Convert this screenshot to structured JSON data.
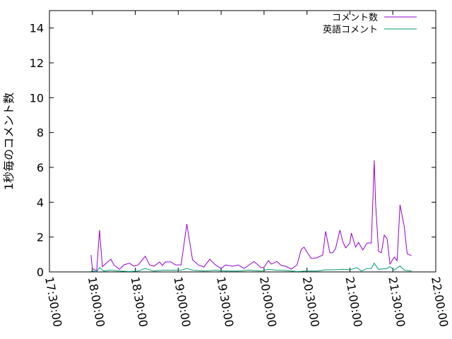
{
  "chart_data": {
    "type": "line",
    "title": "",
    "xlabel": "",
    "ylabel": "1秒毎のコメント数",
    "xlim": [
      "17:30:00",
      "22:00:00"
    ],
    "ylim": [
      0,
      15
    ],
    "xticks": [
      "17:30:00",
      "18:00:00",
      "18:30:00",
      "19:00:00",
      "19:30:00",
      "20:00:00",
      "20:30:00",
      "21:00:00",
      "21:30:00",
      "22:00:00"
    ],
    "yticks": [
      0,
      2,
      4,
      6,
      8,
      10,
      12,
      14
    ],
    "grid": false,
    "legend_position": "top-right",
    "series": [
      {
        "name": "コメント数",
        "color": "#9400d3",
        "points": [
          [
            "17:59",
            0.97
          ],
          [
            "18:00",
            0.2
          ],
          [
            "18:03",
            0.05
          ],
          [
            "18:05",
            2.4
          ],
          [
            "18:07",
            0.3
          ],
          [
            "18:11",
            0.6
          ],
          [
            "18:13",
            0.73
          ],
          [
            "18:15",
            0.4
          ],
          [
            "18:19",
            0.15
          ],
          [
            "18:22",
            0.4
          ],
          [
            "18:26",
            0.5
          ],
          [
            "18:29",
            0.33
          ],
          [
            "18:32",
            0.4
          ],
          [
            "18:37",
            0.9
          ],
          [
            "18:40",
            0.4
          ],
          [
            "18:43",
            0.33
          ],
          [
            "18:47",
            0.57
          ],
          [
            "18:49",
            0.37
          ],
          [
            "18:51",
            0.57
          ],
          [
            "18:55",
            0.57
          ],
          [
            "18:58",
            0.4
          ],
          [
            "19:02",
            0.4
          ],
          [
            "19:06",
            2.75
          ],
          [
            "19:10",
            0.7
          ],
          [
            "19:14",
            0.4
          ],
          [
            "19:18",
            0.28
          ],
          [
            "19:22",
            0.73
          ],
          [
            "19:26",
            0.4
          ],
          [
            "19:30",
            0.2
          ],
          [
            "19:33",
            0.4
          ],
          [
            "19:38",
            0.33
          ],
          [
            "19:42",
            0.4
          ],
          [
            "19:46",
            0.2
          ],
          [
            "19:49",
            0.37
          ],
          [
            "19:53",
            0.6
          ],
          [
            "19:58",
            0.24
          ],
          [
            "20:00",
            0.28
          ],
          [
            "20:03",
            0.65
          ],
          [
            "20:05",
            0.45
          ],
          [
            "20:09",
            0.6
          ],
          [
            "20:12",
            0.37
          ],
          [
            "20:15",
            0.33
          ],
          [
            "20:19",
            0.16
          ],
          [
            "20:23",
            0.4
          ],
          [
            "20:26",
            1.3
          ],
          [
            "20:28",
            1.42
          ],
          [
            "20:30",
            1.14
          ],
          [
            "20:33",
            0.77
          ],
          [
            "20:37",
            0.81
          ],
          [
            "20:41",
            0.97
          ],
          [
            "20:43",
            2.33
          ],
          [
            "20:46",
            1.1
          ],
          [
            "20:48",
            1.1
          ],
          [
            "20:50",
            1.34
          ],
          [
            "20:53",
            2.4
          ],
          [
            "20:55",
            1.74
          ],
          [
            "20:57",
            1.38
          ],
          [
            "21:00",
            1.66
          ],
          [
            "21:01",
            2.23
          ],
          [
            "21:04",
            1.42
          ],
          [
            "21:06",
            1.7
          ],
          [
            "21:09",
            1.26
          ],
          [
            "21:12",
            1.66
          ],
          [
            "21:15",
            1.66
          ],
          [
            "21:17",
            6.4
          ],
          [
            "21:18",
            3.85
          ],
          [
            "21:20",
            1.18
          ],
          [
            "21:22",
            1.1
          ],
          [
            "21:24",
            2.11
          ],
          [
            "21:26",
            1.9
          ],
          [
            "21:28",
            0.45
          ],
          [
            "21:31",
            0.85
          ],
          [
            "21:33",
            0.65
          ],
          [
            "21:35",
            3.85
          ],
          [
            "21:38",
            2.6
          ],
          [
            "21:40",
            1.05
          ],
          [
            "21:43",
            0.93
          ]
        ]
      },
      {
        "name": "英語コメント",
        "color": "#009e73",
        "points": [
          [
            "17:59",
            0.05
          ],
          [
            "18:03",
            0.02
          ],
          [
            "18:05",
            0.25
          ],
          [
            "18:08",
            0.05
          ],
          [
            "18:13",
            0.1
          ],
          [
            "18:19",
            0.05
          ],
          [
            "18:26",
            0.02
          ],
          [
            "18:32",
            0.05
          ],
          [
            "18:37",
            0.2
          ],
          [
            "18:43",
            0.05
          ],
          [
            "18:49",
            0.1
          ],
          [
            "18:55",
            0.1
          ],
          [
            "19:02",
            0.1
          ],
          [
            "19:06",
            0.2
          ],
          [
            "19:10",
            0.1
          ],
          [
            "19:18",
            0.05
          ],
          [
            "19:26",
            0.1
          ],
          [
            "19:33",
            0.05
          ],
          [
            "19:42",
            0.05
          ],
          [
            "19:49",
            0.1
          ],
          [
            "19:58",
            0.05
          ],
          [
            "20:03",
            0.15
          ],
          [
            "20:09",
            0.1
          ],
          [
            "20:15",
            0.08
          ],
          [
            "20:23",
            0.02
          ],
          [
            "20:30",
            0.05
          ],
          [
            "20:37",
            0.05
          ],
          [
            "20:43",
            0.12
          ],
          [
            "20:48",
            0.12
          ],
          [
            "20:55",
            0.15
          ],
          [
            "21:00",
            0.12
          ],
          [
            "21:05",
            0.25
          ],
          [
            "21:08",
            0.05
          ],
          [
            "21:12",
            0.2
          ],
          [
            "21:15",
            0.2
          ],
          [
            "21:17",
            0.5
          ],
          [
            "21:20",
            0.15
          ],
          [
            "21:26",
            0.2
          ],
          [
            "21:28",
            0.3
          ],
          [
            "21:31",
            0.1
          ],
          [
            "21:35",
            0.35
          ],
          [
            "21:38",
            0.1
          ],
          [
            "21:43",
            0.05
          ]
        ]
      }
    ]
  }
}
